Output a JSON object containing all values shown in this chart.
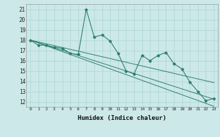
{
  "xlabel": "Humidex (Indice chaleur)",
  "ylabel": "",
  "x_data": [
    0,
    1,
    2,
    3,
    4,
    5,
    6,
    7,
    8,
    9,
    10,
    11,
    12,
    13,
    14,
    15,
    16,
    17,
    18,
    19,
    20,
    21,
    22,
    23
  ],
  "y_main": [
    18,
    17.5,
    17.5,
    17.3,
    17.2,
    16.7,
    16.6,
    21.0,
    18.3,
    18.5,
    17.9,
    16.7,
    15.0,
    14.7,
    16.5,
    16.0,
    16.5,
    16.8,
    15.7,
    15.2,
    13.9,
    13.0,
    12.1,
    12.3
  ],
  "y_trend1": [
    18.0,
    17.75,
    17.5,
    17.25,
    17.0,
    16.75,
    16.5,
    16.25,
    16.0,
    15.75,
    15.5,
    15.25,
    15.0,
    14.75,
    14.5,
    14.25,
    14.0,
    13.75,
    13.5,
    13.25,
    13.0,
    12.75,
    12.5,
    12.25
  ],
  "y_trend2": [
    18.0,
    17.72,
    17.44,
    17.16,
    16.88,
    16.6,
    16.32,
    16.04,
    15.76,
    15.48,
    15.2,
    14.92,
    14.64,
    14.36,
    14.08,
    13.8,
    13.52,
    13.24,
    12.96,
    12.68,
    12.4,
    12.12,
    11.84,
    11.56
  ],
  "y_trend3": [
    18.0,
    17.82,
    17.64,
    17.46,
    17.28,
    17.1,
    16.92,
    16.74,
    16.56,
    16.38,
    16.2,
    16.02,
    15.84,
    15.66,
    15.48,
    15.3,
    15.12,
    14.94,
    14.76,
    14.58,
    14.4,
    14.22,
    14.04,
    13.86
  ],
  "line_color": "#2e7d6e",
  "bg_color": "#cce8e8",
  "grid_color": "#aad4d4",
  "ylim": [
    11.5,
    21.5
  ],
  "xlim": [
    -0.5,
    23.5
  ],
  "yticks": [
    12,
    13,
    14,
    15,
    16,
    17,
    18,
    19,
    20,
    21
  ],
  "xticks": [
    0,
    1,
    2,
    3,
    4,
    5,
    6,
    7,
    8,
    9,
    10,
    11,
    12,
    13,
    14,
    15,
    16,
    17,
    18,
    19,
    20,
    21,
    22,
    23
  ]
}
